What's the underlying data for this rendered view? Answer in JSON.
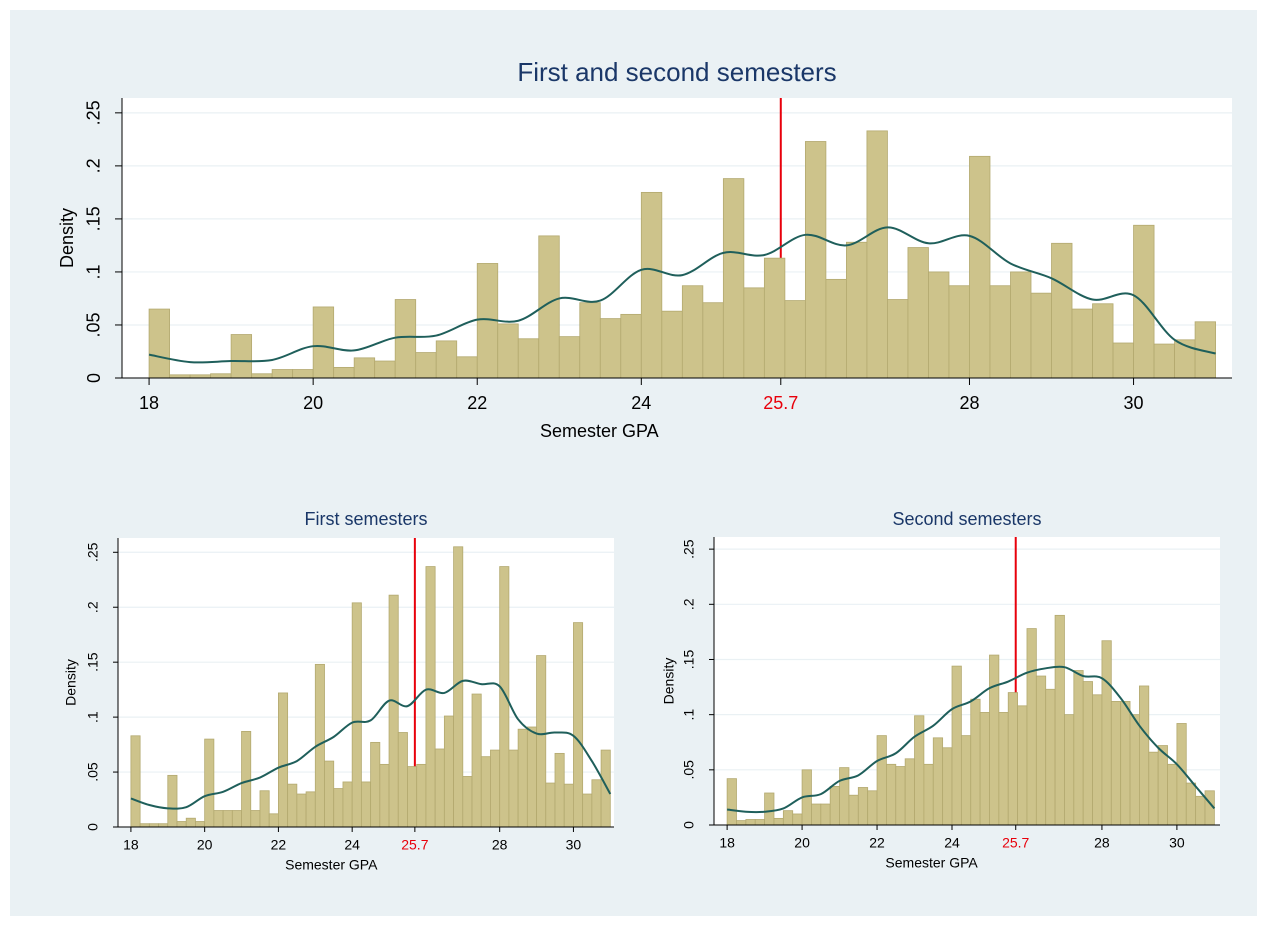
{
  "chart_data": [
    {
      "type": "histogram",
      "title": "First and second semesters",
      "xlabel": "Semester GPA",
      "ylabel": "Density",
      "bins": [
        18,
        18.25,
        18.5,
        18.75,
        19,
        19.25,
        19.5,
        19.75,
        20,
        20.25,
        20.5,
        20.75,
        21,
        21.25,
        21.5,
        21.75,
        22,
        22.25,
        22.5,
        22.75,
        23,
        23.25,
        23.5,
        23.75,
        24,
        24.25,
        24.5,
        24.75,
        25,
        25.25,
        25.5,
        25.75,
        26,
        26.25,
        26.5,
        26.75,
        27,
        27.25,
        27.5,
        27.75,
        28,
        28.25,
        28.5,
        28.75,
        29,
        29.25,
        29.5,
        29.75,
        30,
        30.25,
        30.5,
        30.75,
        31
      ],
      "values": [
        0.065,
        0.003,
        0.003,
        0.004,
        0.041,
        0.004,
        0.008,
        0.008,
        0.067,
        0.01,
        0.019,
        0.016,
        0.074,
        0.024,
        0.035,
        0.02,
        0.108,
        0.051,
        0.037,
        0.134,
        0.039,
        0.071,
        0.056,
        0.06,
        0.175,
        0.063,
        0.087,
        0.071,
        0.188,
        0.085,
        0.113,
        0.073,
        0.223,
        0.093,
        0.128,
        0.233,
        0.074,
        0.123,
        0.1,
        0.087,
        0.209,
        0.087,
        0.1,
        0.08,
        0.127,
        0.065,
        0.07,
        0.033,
        0.144,
        0.032,
        0.036,
        0.053
      ],
      "color": "#cdc38b",
      "density": {
        "x": [
          18,
          18.5,
          19,
          19.5,
          20,
          20.5,
          21,
          21.5,
          22,
          22.5,
          23,
          23.5,
          24,
          24.5,
          25,
          25.5,
          26,
          26.5,
          27,
          27.5,
          28,
          28.5,
          29,
          29.5,
          30,
          30.5,
          31
        ],
        "values": [
          0.022,
          0.015,
          0.016,
          0.017,
          0.03,
          0.026,
          0.038,
          0.04,
          0.055,
          0.054,
          0.075,
          0.073,
          0.102,
          0.097,
          0.118,
          0.116,
          0.135,
          0.125,
          0.142,
          0.127,
          0.134,
          0.108,
          0.094,
          0.074,
          0.078,
          0.036,
          0.023
        ],
        "color": "#1f5f5b"
      },
      "vline": 25.7,
      "vline_color": "#e8000b",
      "xlim": [
        17.67,
        31.2
      ],
      "ylim": [
        0,
        0.264
      ],
      "xticks": [
        18,
        20,
        22,
        24,
        28,
        30
      ],
      "yticks": [
        0,
        {
          "value": 0.05,
          "label": ".05"
        },
        {
          "value": 0.1,
          "label": ".1"
        },
        {
          "value": 0.15,
          "label": ".15"
        },
        {
          "value": 0.2,
          "label": ".2"
        },
        {
          "value": 0.25,
          "label": ".25"
        }
      ],
      "grid": true
    },
    {
      "type": "histogram",
      "title": "First semesters",
      "xlabel": "Semester GPA",
      "ylabel": "Density",
      "bins": [
        18,
        18.25,
        18.5,
        18.75,
        19,
        19.25,
        19.5,
        19.75,
        20,
        20.25,
        20.5,
        20.75,
        21,
        21.25,
        21.5,
        21.75,
        22,
        22.25,
        22.5,
        22.75,
        23,
        23.25,
        23.5,
        23.75,
        24,
        24.25,
        24.5,
        24.75,
        25,
        25.25,
        25.5,
        25.75,
        26,
        26.25,
        26.5,
        26.75,
        27,
        27.25,
        27.5,
        27.75,
        28,
        28.25,
        28.5,
        28.75,
        29,
        29.25,
        29.5,
        29.75,
        30,
        30.25,
        30.5,
        30.75,
        31
      ],
      "values": [
        0.083,
        0.003,
        0.003,
        0.003,
        0.047,
        0.005,
        0.008,
        0.005,
        0.08,
        0.015,
        0.015,
        0.015,
        0.087,
        0.015,
        0.033,
        0.012,
        0.122,
        0.039,
        0.03,
        0.032,
        0.148,
        0.06,
        0.035,
        0.041,
        0.204,
        0.041,
        0.077,
        0.057,
        0.211,
        0.086,
        0.055,
        0.057,
        0.237,
        0.071,
        0.101,
        0.255,
        0.046,
        0.121,
        0.064,
        0.07,
        0.237,
        0.07,
        0.089,
        0.091,
        0.156,
        0.04,
        0.067,
        0.039,
        0.186,
        0.03,
        0.043,
        0.07
      ],
      "color": "#cdc38b",
      "density": {
        "x": [
          18,
          18.5,
          19,
          19.5,
          20,
          20.5,
          21,
          21.5,
          22,
          22.5,
          23,
          23.5,
          24,
          24.5,
          25,
          25.5,
          26,
          26.5,
          27,
          27.5,
          28,
          28.5,
          29,
          29.5,
          30,
          30.5,
          31
        ],
        "values": [
          0.026,
          0.02,
          0.017,
          0.018,
          0.028,
          0.032,
          0.04,
          0.045,
          0.054,
          0.06,
          0.073,
          0.082,
          0.095,
          0.097,
          0.115,
          0.11,
          0.125,
          0.122,
          0.133,
          0.13,
          0.128,
          0.098,
          0.085,
          0.086,
          0.083,
          0.06,
          0.03
        ],
        "color": "#1f5f5b"
      },
      "vline": 25.7,
      "vline_color": "#e8000b",
      "xlim": [
        17.65,
        31.1
      ],
      "ylim": [
        0,
        0.263
      ],
      "xticks": [
        18,
        20,
        22,
        24,
        28,
        30
      ],
      "yticks": [
        0,
        {
          "value": 0.05,
          "label": ".05"
        },
        {
          "value": 0.1,
          "label": ".1"
        },
        {
          "value": 0.15,
          "label": ".15"
        },
        {
          "value": 0.2,
          "label": ".2"
        },
        {
          "value": 0.25,
          "label": ".25"
        }
      ],
      "grid": true
    },
    {
      "type": "histogram",
      "title": "Second semesters",
      "xlabel": "Semester GPA",
      "ylabel": "Density",
      "bins": [
        18,
        18.25,
        18.5,
        18.75,
        19,
        19.25,
        19.5,
        19.75,
        20,
        20.25,
        20.5,
        20.75,
        21,
        21.25,
        21.5,
        21.75,
        22,
        22.25,
        22.5,
        22.75,
        23,
        23.25,
        23.5,
        23.75,
        24,
        24.25,
        24.5,
        24.75,
        25,
        25.25,
        25.5,
        25.75,
        26,
        26.25,
        26.5,
        26.75,
        27,
        27.25,
        27.5,
        27.75,
        28,
        28.25,
        28.5,
        28.75,
        29,
        29.25,
        29.5,
        29.75,
        30,
        30.25,
        30.5,
        30.75,
        31
      ],
      "values": [
        0.042,
        0.004,
        0.005,
        0.005,
        0.029,
        0.006,
        0.013,
        0.01,
        0.05,
        0.019,
        0.019,
        0.035,
        0.052,
        0.027,
        0.034,
        0.031,
        0.081,
        0.055,
        0.053,
        0.06,
        0.099,
        0.055,
        0.079,
        0.07,
        0.144,
        0.081,
        0.114,
        0.102,
        0.154,
        0.102,
        0.12,
        0.108,
        0.178,
        0.135,
        0.123,
        0.19,
        0.1,
        0.14,
        0.13,
        0.118,
        0.167,
        0.112,
        0.112,
        0.1,
        0.126,
        0.066,
        0.072,
        0.055,
        0.092,
        0.038,
        0.026,
        0.031
      ],
      "color": "#cdc38b",
      "density": {
        "x": [
          18,
          18.5,
          19,
          19.5,
          20,
          20.5,
          21,
          21.5,
          22,
          22.5,
          23,
          23.5,
          24,
          24.5,
          25,
          25.5,
          26,
          26.5,
          27,
          27.5,
          28,
          28.5,
          29,
          29.5,
          30,
          30.5,
          31
        ],
        "values": [
          0.014,
          0.012,
          0.012,
          0.015,
          0.025,
          0.028,
          0.04,
          0.045,
          0.058,
          0.065,
          0.08,
          0.09,
          0.105,
          0.112,
          0.124,
          0.13,
          0.138,
          0.142,
          0.143,
          0.135,
          0.133,
          0.115,
          0.09,
          0.07,
          0.055,
          0.035,
          0.015
        ],
        "color": "#1f5f5b"
      },
      "vline": 25.7,
      "vline_color": "#e8000b",
      "xlim": [
        17.65,
        31.15
      ],
      "ylim": [
        0,
        0.261
      ],
      "xticks": [
        18,
        20,
        22,
        24,
        28,
        30
      ],
      "yticks": [
        0,
        {
          "value": 0.05,
          "label": ".05"
        },
        {
          "value": 0.1,
          "label": ".1"
        },
        {
          "value": 0.15,
          "label": ".15"
        },
        {
          "value": 0.2,
          "label": ".2"
        },
        {
          "value": 0.25,
          "label": ".25"
        }
      ],
      "grid": true
    }
  ]
}
